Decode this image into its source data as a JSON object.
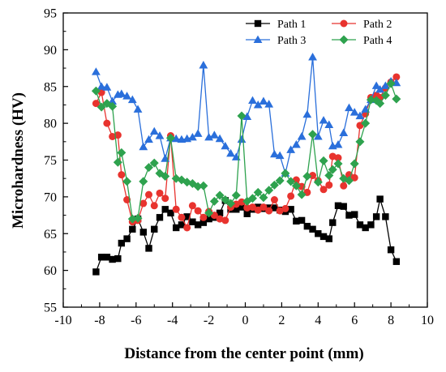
{
  "chart_data": {
    "type": "line",
    "xlabel": "Distance from the center point (mm)",
    "ylabel": "Microhardness (HV)",
    "xlim": [
      -10,
      10
    ],
    "ylim": [
      55,
      95
    ],
    "xticks": [
      -10,
      -8,
      -6,
      -4,
      -2,
      0,
      2,
      4,
      6,
      8,
      10
    ],
    "yticks": [
      55,
      60,
      65,
      70,
      75,
      80,
      85,
      90,
      95
    ],
    "grid": false,
    "legend_position": "top-right",
    "series": [
      {
        "name": "Path 1",
        "color": "#000000",
        "marker": "square",
        "points": [
          [
            -8.2,
            59.8
          ],
          [
            -7.9,
            61.8
          ],
          [
            -7.6,
            61.8
          ],
          [
            -7.3,
            61.5
          ],
          [
            -7.0,
            61.6
          ],
          [
            -6.8,
            63.7
          ],
          [
            -6.5,
            64.3
          ],
          [
            -6.2,
            65.6
          ],
          [
            -5.9,
            67.0
          ],
          [
            -5.6,
            65.2
          ],
          [
            -5.3,
            63.0
          ],
          [
            -5.0,
            65.6
          ],
          [
            -4.7,
            67.2
          ],
          [
            -4.4,
            68.3
          ],
          [
            -4.1,
            67.8
          ],
          [
            -3.8,
            65.8
          ],
          [
            -3.5,
            66.2
          ],
          [
            -3.2,
            67.3
          ],
          [
            -2.9,
            66.6
          ],
          [
            -2.6,
            66.2
          ],
          [
            -2.3,
            66.5
          ],
          [
            -2.0,
            67.0
          ],
          [
            -1.7,
            67.2
          ],
          [
            -1.4,
            67.8
          ],
          [
            -1.1,
            69.5
          ],
          [
            -0.8,
            68.3
          ],
          [
            -0.5,
            68.3
          ],
          [
            -0.2,
            68.6
          ],
          [
            0.1,
            67.7
          ],
          [
            0.4,
            68.3
          ],
          [
            0.7,
            68.6
          ],
          [
            1.0,
            68.4
          ],
          [
            1.3,
            68.5
          ],
          [
            1.6,
            68.5
          ],
          [
            1.9,
            68.2
          ],
          [
            2.2,
            68.0
          ],
          [
            2.5,
            68.3
          ],
          [
            2.8,
            66.7
          ],
          [
            3.1,
            66.8
          ],
          [
            3.4,
            66.0
          ],
          [
            3.7,
            65.6
          ],
          [
            4.0,
            65.0
          ],
          [
            4.3,
            64.6
          ],
          [
            4.6,
            64.3
          ],
          [
            4.8,
            66.5
          ],
          [
            5.1,
            68.8
          ],
          [
            5.4,
            68.7
          ],
          [
            5.7,
            67.5
          ],
          [
            6.0,
            67.6
          ],
          [
            6.3,
            66.2
          ],
          [
            6.6,
            65.8
          ],
          [
            6.9,
            66.2
          ],
          [
            7.2,
            67.3
          ],
          [
            7.4,
            69.7
          ],
          [
            7.7,
            67.3
          ],
          [
            8.0,
            62.8
          ],
          [
            8.3,
            61.2
          ]
        ]
      },
      {
        "name": "Path 2",
        "color": "#e8332e",
        "marker": "circle",
        "points": [
          [
            -8.2,
            82.7
          ],
          [
            -7.9,
            84.2
          ],
          [
            -7.6,
            80.0
          ],
          [
            -7.3,
            78.2
          ],
          [
            -7.0,
            78.4
          ],
          [
            -6.8,
            73.0
          ],
          [
            -6.5,
            69.6
          ],
          [
            -6.2,
            66.6
          ],
          [
            -5.9,
            66.8
          ],
          [
            -5.6,
            69.1
          ],
          [
            -5.3,
            70.3
          ],
          [
            -5.0,
            68.8
          ],
          [
            -4.7,
            70.5
          ],
          [
            -4.4,
            69.8
          ],
          [
            -4.1,
            78.3
          ],
          [
            -3.8,
            68.3
          ],
          [
            -3.5,
            67.2
          ],
          [
            -3.2,
            65.8
          ],
          [
            -2.9,
            68.8
          ],
          [
            -2.6,
            68.1
          ],
          [
            -2.3,
            67.2
          ],
          [
            -2.0,
            68.0
          ],
          [
            -1.7,
            67.5
          ],
          [
            -1.4,
            67.0
          ],
          [
            -1.1,
            66.8
          ],
          [
            -0.8,
            68.6
          ],
          [
            -0.5,
            69.0
          ],
          [
            -0.2,
            69.3
          ],
          [
            0.1,
            68.5
          ],
          [
            0.4,
            68.6
          ],
          [
            0.7,
            68.2
          ],
          [
            1.0,
            68.6
          ],
          [
            1.3,
            68.1
          ],
          [
            1.6,
            69.6
          ],
          [
            1.9,
            68.1
          ],
          [
            2.2,
            68.4
          ],
          [
            2.5,
            70.1
          ],
          [
            2.8,
            72.3
          ],
          [
            3.1,
            71.4
          ],
          [
            3.4,
            70.6
          ],
          [
            3.7,
            72.9
          ],
          [
            4.0,
            72.2
          ],
          [
            4.3,
            71.0
          ],
          [
            4.6,
            71.6
          ],
          [
            4.8,
            75.5
          ],
          [
            5.1,
            75.3
          ],
          [
            5.4,
            71.5
          ],
          [
            5.7,
            73.0
          ],
          [
            6.0,
            72.6
          ],
          [
            6.3,
            79.7
          ],
          [
            6.6,
            81.3
          ],
          [
            6.9,
            83.5
          ],
          [
            7.2,
            83.8
          ],
          [
            7.4,
            83.5
          ],
          [
            7.7,
            84.8
          ],
          [
            8.0,
            85.6
          ],
          [
            8.3,
            86.3
          ]
        ]
      },
      {
        "name": "Path 3",
        "color": "#2a6fdb",
        "marker": "triangle",
        "points": [
          [
            -8.2,
            87.0
          ],
          [
            -7.9,
            85.0
          ],
          [
            -7.6,
            84.9
          ],
          [
            -7.3,
            83.0
          ],
          [
            -7.0,
            83.9
          ],
          [
            -6.8,
            84.0
          ],
          [
            -6.5,
            83.7
          ],
          [
            -6.2,
            83.2
          ],
          [
            -5.9,
            81.9
          ],
          [
            -5.6,
            76.8
          ],
          [
            -5.3,
            77.8
          ],
          [
            -5.0,
            78.9
          ],
          [
            -4.7,
            78.3
          ],
          [
            -4.4,
            75.2
          ],
          [
            -4.1,
            78.0
          ],
          [
            -3.8,
            77.9
          ],
          [
            -3.5,
            77.8
          ],
          [
            -3.2,
            77.9
          ],
          [
            -2.9,
            78.1
          ],
          [
            -2.6,
            78.6
          ],
          [
            -2.3,
            87.9
          ],
          [
            -2.0,
            78.1
          ],
          [
            -1.7,
            78.4
          ],
          [
            -1.4,
            77.9
          ],
          [
            -1.1,
            76.9
          ],
          [
            -0.8,
            75.9
          ],
          [
            -0.5,
            75.4
          ],
          [
            -0.2,
            77.8
          ],
          [
            0.1,
            80.9
          ],
          [
            0.4,
            83.1
          ],
          [
            0.7,
            82.5
          ],
          [
            1.0,
            83.0
          ],
          [
            1.3,
            82.6
          ],
          [
            1.6,
            75.8
          ],
          [
            1.9,
            75.6
          ],
          [
            2.2,
            73.2
          ],
          [
            2.5,
            76.4
          ],
          [
            2.8,
            77.1
          ],
          [
            3.1,
            78.2
          ],
          [
            3.4,
            81.2
          ],
          [
            3.7,
            89.0
          ],
          [
            4.0,
            78.2
          ],
          [
            4.3,
            80.4
          ],
          [
            4.6,
            79.8
          ],
          [
            4.8,
            76.9
          ],
          [
            5.1,
            77.1
          ],
          [
            5.4,
            78.7
          ],
          [
            5.7,
            82.1
          ],
          [
            6.0,
            81.5
          ],
          [
            6.3,
            81.0
          ],
          [
            6.6,
            81.9
          ],
          [
            6.9,
            83.2
          ],
          [
            7.2,
            85.1
          ],
          [
            7.4,
            84.6
          ],
          [
            7.7,
            85.1
          ],
          [
            8.0,
            85.7
          ],
          [
            8.3,
            85.5
          ]
        ]
      },
      {
        "name": "Path 4",
        "color": "#2ea24e",
        "marker": "diamond",
        "points": [
          [
            -8.2,
            84.4
          ],
          [
            -7.9,
            82.2
          ],
          [
            -7.6,
            82.7
          ],
          [
            -7.3,
            82.3
          ],
          [
            -7.0,
            74.7
          ],
          [
            -6.8,
            76.0
          ],
          [
            -6.5,
            72.1
          ],
          [
            -6.2,
            67.0
          ],
          [
            -5.9,
            67.1
          ],
          [
            -5.6,
            72.1
          ],
          [
            -5.3,
            74.0
          ],
          [
            -5.0,
            74.6
          ],
          [
            -4.7,
            73.2
          ],
          [
            -4.4,
            72.8
          ],
          [
            -4.1,
            78.0
          ],
          [
            -3.8,
            72.5
          ],
          [
            -3.5,
            72.3
          ],
          [
            -3.2,
            72.0
          ],
          [
            -2.9,
            71.8
          ],
          [
            -2.6,
            71.4
          ],
          [
            -2.3,
            71.5
          ],
          [
            -2.0,
            67.8
          ],
          [
            -1.7,
            69.4
          ],
          [
            -1.4,
            70.2
          ],
          [
            -1.1,
            69.6
          ],
          [
            -0.8,
            69.1
          ],
          [
            -0.5,
            70.2
          ],
          [
            -0.2,
            81.0
          ],
          [
            0.1,
            69.4
          ],
          [
            0.4,
            69.8
          ],
          [
            0.7,
            70.6
          ],
          [
            1.0,
            69.9
          ],
          [
            1.3,
            70.9
          ],
          [
            1.6,
            71.6
          ],
          [
            1.9,
            72.2
          ],
          [
            2.2,
            73.2
          ],
          [
            2.5,
            72.1
          ],
          [
            2.8,
            71.5
          ],
          [
            3.1,
            70.3
          ],
          [
            3.4,
            72.8
          ],
          [
            3.7,
            78.5
          ],
          [
            4.0,
            72.0
          ],
          [
            4.3,
            74.9
          ],
          [
            4.6,
            72.9
          ],
          [
            4.8,
            73.7
          ],
          [
            5.1,
            74.5
          ],
          [
            5.4,
            72.5
          ],
          [
            5.7,
            72.2
          ],
          [
            6.0,
            74.5
          ],
          [
            6.3,
            77.5
          ],
          [
            6.6,
            80.0
          ],
          [
            6.9,
            83.2
          ],
          [
            7.2,
            83.1
          ],
          [
            7.4,
            82.7
          ],
          [
            7.7,
            83.8
          ],
          [
            8.0,
            85.4
          ],
          [
            8.3,
            83.3
          ]
        ]
      }
    ]
  }
}
